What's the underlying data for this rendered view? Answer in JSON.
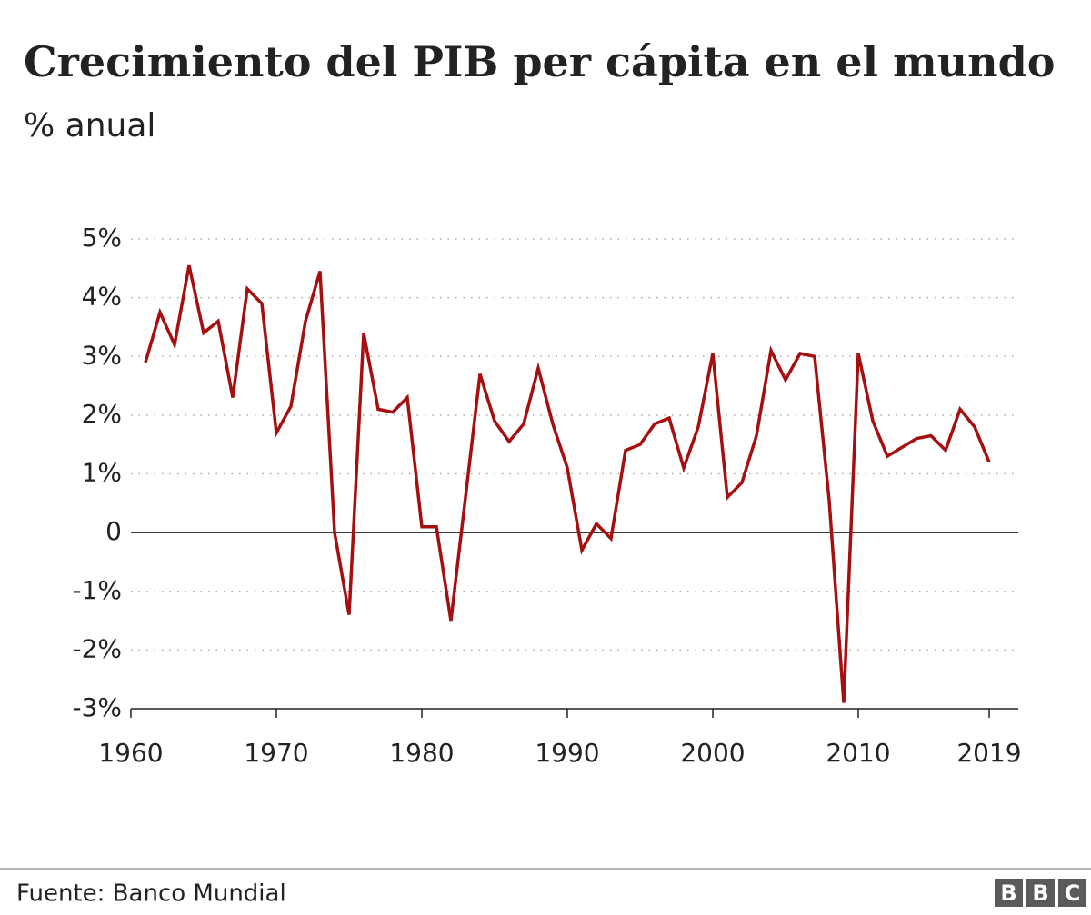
{
  "chart_data": {
    "type": "line",
    "title": "Crecimiento del PIB per cápita en el mundo",
    "subtitle": "% anual",
    "x": [
      1961,
      1962,
      1963,
      1964,
      1965,
      1966,
      1967,
      1968,
      1969,
      1970,
      1971,
      1972,
      1973,
      1974,
      1975,
      1976,
      1977,
      1978,
      1979,
      1980,
      1981,
      1982,
      1983,
      1984,
      1985,
      1986,
      1987,
      1988,
      1989,
      1990,
      1991,
      1992,
      1993,
      1994,
      1995,
      1996,
      1997,
      1998,
      1999,
      2000,
      2001,
      2002,
      2003,
      2004,
      2005,
      2006,
      2007,
      2008,
      2009,
      2010,
      2011,
      2012,
      2013,
      2014,
      2015,
      2016,
      2017,
      2018,
      2019
    ],
    "series": [
      {
        "color": "#a50f0f",
        "values": [
          2.9,
          3.75,
          3.2,
          4.55,
          3.4,
          3.6,
          2.3,
          4.15,
          3.9,
          1.7,
          2.15,
          3.6,
          4.45,
          0.0,
          -1.4,
          3.4,
          2.1,
          2.05,
          2.3,
          0.1,
          0.1,
          -1.5,
          0.6,
          2.7,
          1.9,
          1.55,
          1.85,
          2.8,
          1.85,
          1.1,
          -0.3,
          0.15,
          -0.1,
          1.4,
          1.5,
          1.85,
          1.95,
          1.1,
          1.8,
          3.05,
          0.6,
          0.85,
          1.65,
          3.1,
          2.6,
          3.05,
          3.0,
          0.55,
          -2.9,
          3.05,
          1.9,
          1.3,
          1.45,
          1.6,
          1.65,
          1.4,
          2.1,
          1.8,
          1.2
        ]
      }
    ],
    "xlim": [
      1960,
      2021
    ],
    "xticks": [
      1960,
      1970,
      1980,
      1990,
      2000,
      2010,
      2019
    ],
    "ylim": [
      -3,
      5
    ],
    "yticks": [
      {
        "value": -3,
        "label": "-3%"
      },
      {
        "value": -2,
        "label": "-2%"
      },
      {
        "value": -1,
        "label": "-1%"
      },
      0,
      {
        "value": 1,
        "label": "1%"
      },
      {
        "value": 2,
        "label": "2%"
      },
      {
        "value": 3,
        "label": "3%"
      },
      {
        "value": 4,
        "label": "4%"
      },
      {
        "value": 5,
        "label": "5%"
      }
    ],
    "grid": true,
    "source": "Fuente: Banco Mundial",
    "logo": [
      "B",
      "B",
      "C"
    ]
  }
}
